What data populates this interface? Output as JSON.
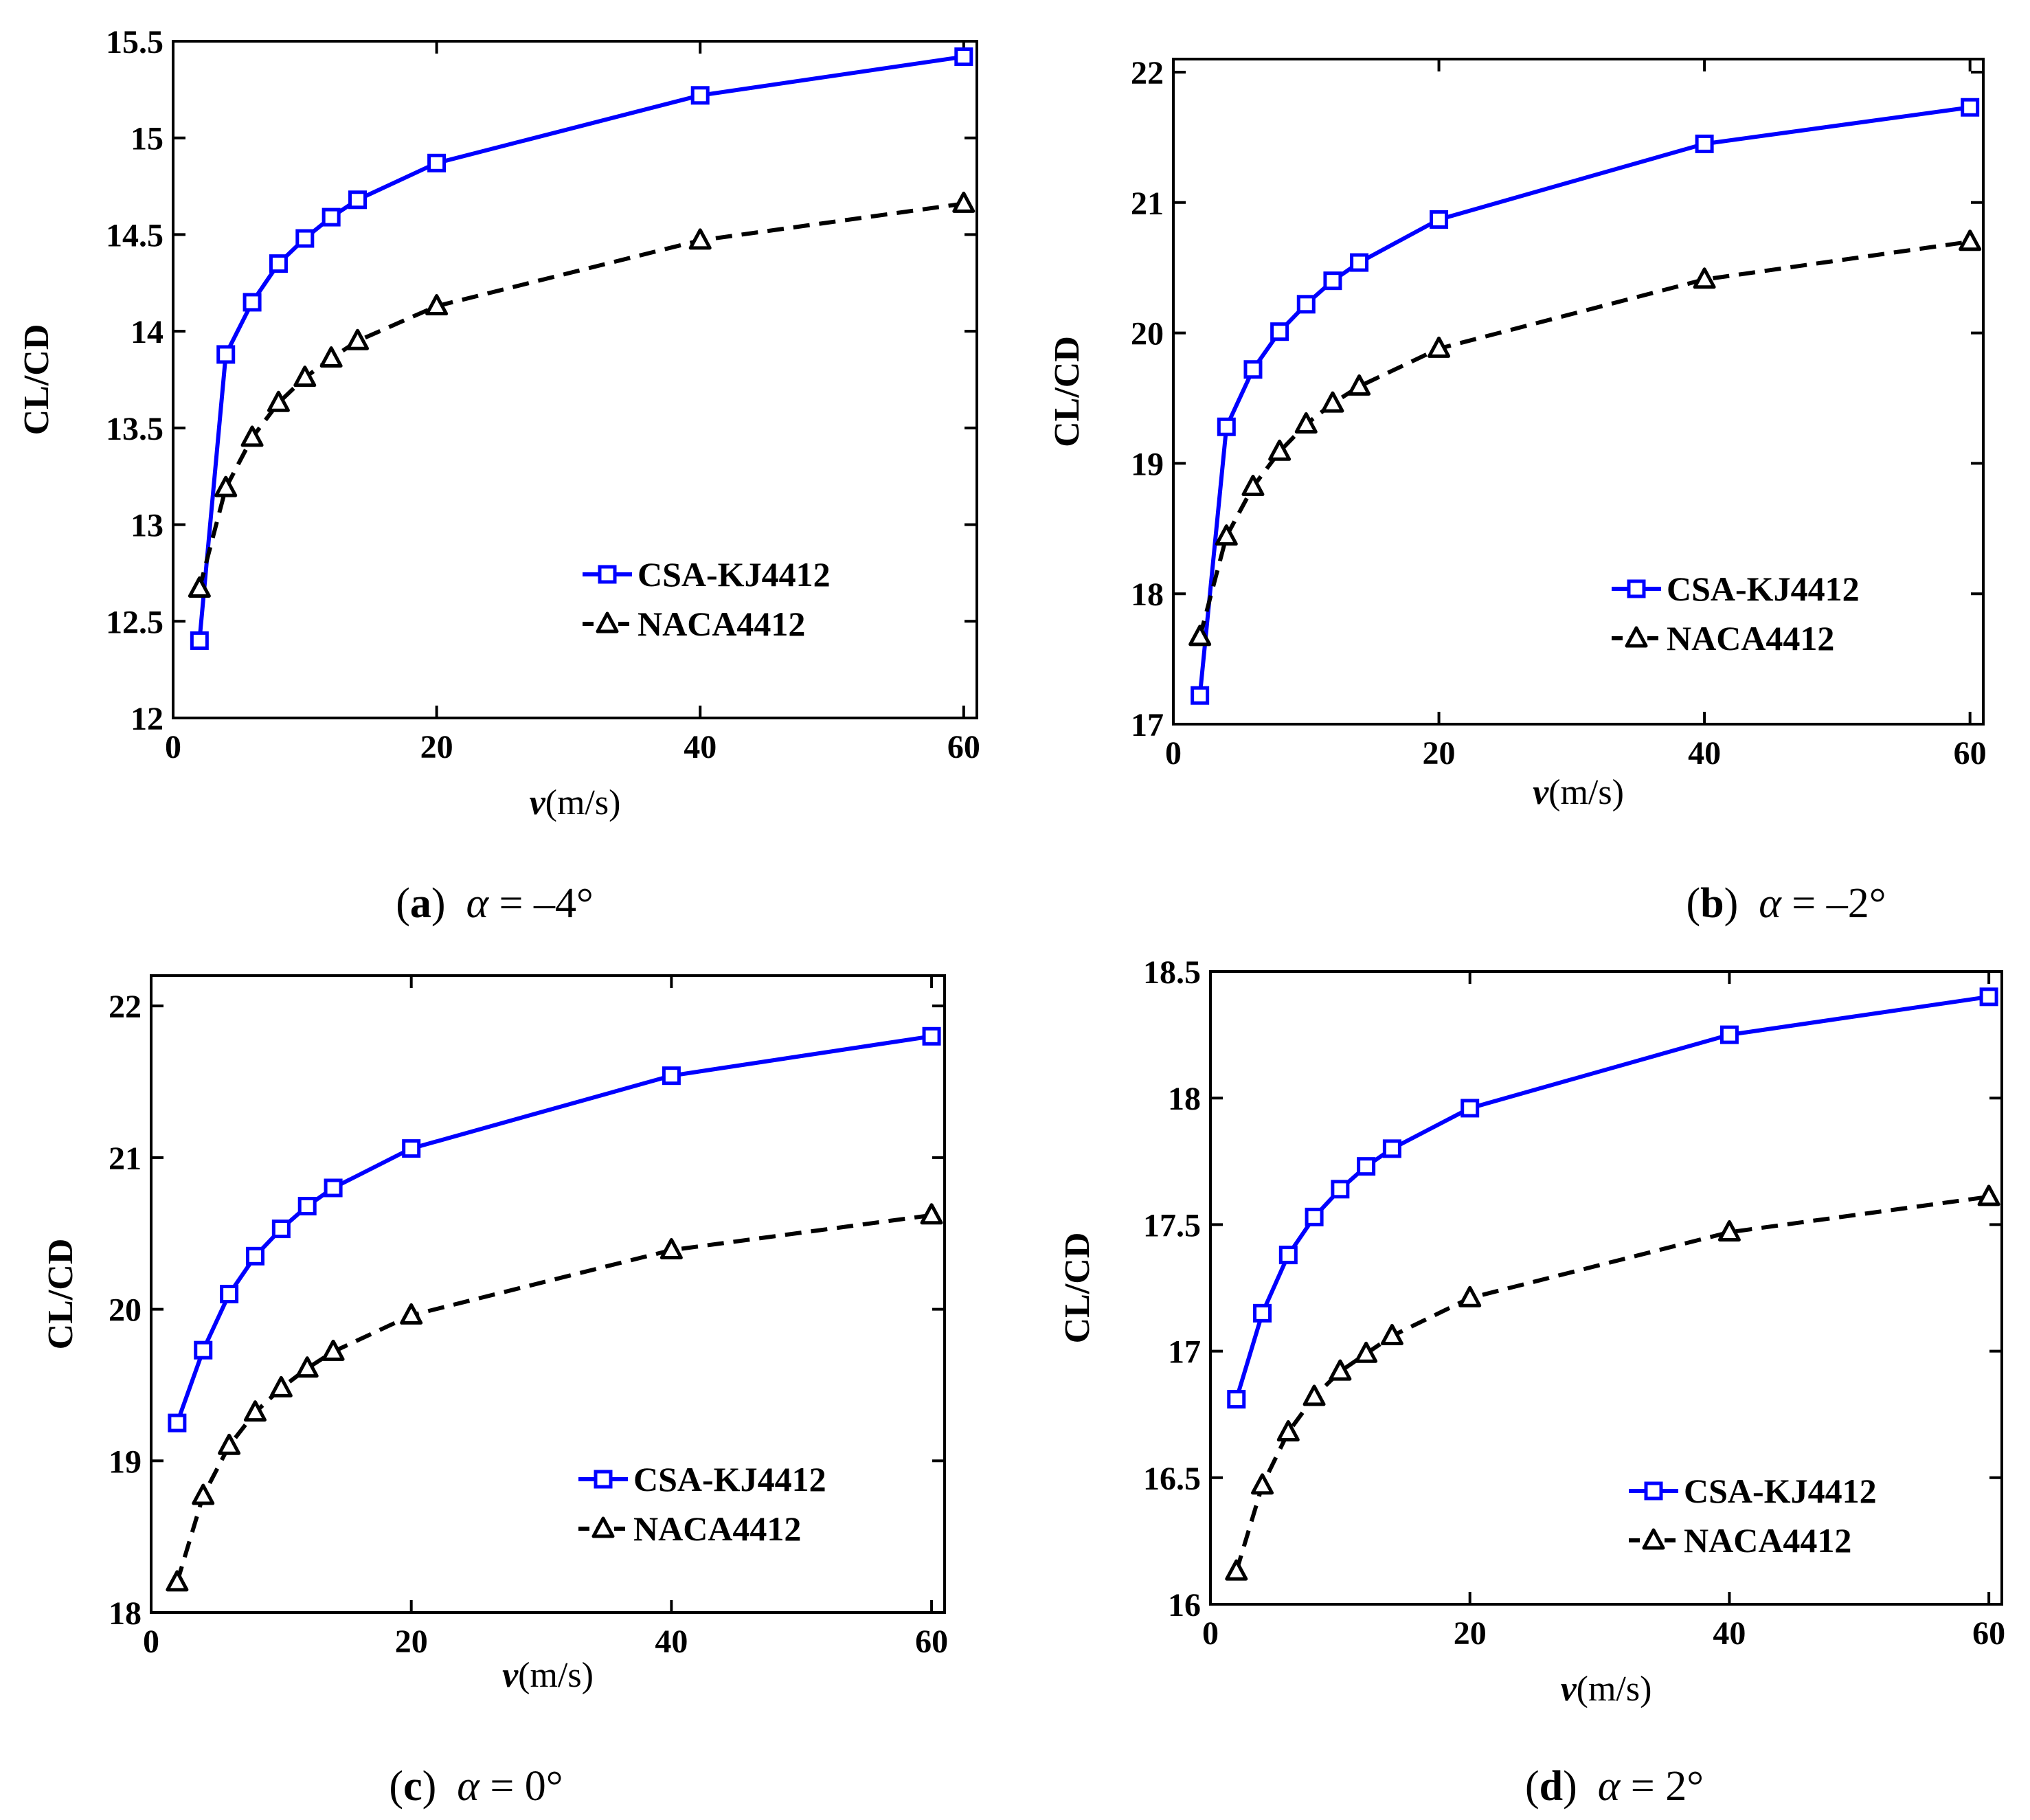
{
  "chart_data": [
    {
      "type": "line",
      "panel": "a",
      "caption": {
        "letter": "a",
        "alpha": "α",
        "rest": " = –4°"
      },
      "xlabel": "v",
      "xlabel_unit": "(m/s)",
      "ylabel": "CL/CD",
      "xlim": [
        0,
        61
      ],
      "ylim": [
        12,
        15.5
      ],
      "xticks": [
        0,
        20,
        40,
        60
      ],
      "xtick_labels": [
        "0",
        "20",
        "40",
        "60"
      ],
      "yticks": [
        12,
        12.5,
        13,
        13.5,
        14,
        14.5,
        15,
        15.5
      ],
      "ytick_labels": [
        "12",
        "12.5",
        "13",
        "13.5",
        "14",
        "14.5",
        "15",
        "15.5"
      ],
      "legend_position": "lower-right",
      "x": [
        2,
        4,
        6,
        8,
        10,
        12,
        14,
        20,
        40,
        60
      ],
      "series": [
        {
          "name": "CSA-KJ4412",
          "color": "#0000ff",
          "style": "solid",
          "marker": "square",
          "values": [
            12.4,
            13.88,
            14.15,
            14.35,
            14.48,
            14.59,
            14.68,
            14.87,
            15.22,
            15.42
          ]
        },
        {
          "name": "NACA4412",
          "color": "#000000",
          "style": "dashed",
          "marker": "triangle",
          "values": [
            12.67,
            13.19,
            13.45,
            13.63,
            13.76,
            13.86,
            13.95,
            14.13,
            14.47,
            14.66
          ]
        }
      ]
    },
    {
      "type": "line",
      "panel": "b",
      "caption": {
        "letter": "b",
        "alpha": "α",
        "rest": " = –2°"
      },
      "xlabel": "v",
      "xlabel_unit": "(m/s)",
      "ylabel": "CL/CD",
      "xlim": [
        0,
        61
      ],
      "ylim": [
        17,
        22.1
      ],
      "xticks": [
        0,
        20,
        40,
        60
      ],
      "xtick_labels": [
        "0",
        "20",
        "40",
        "60"
      ],
      "yticks": [
        17,
        18,
        19,
        20,
        21,
        22
      ],
      "ytick_labels": [
        "17",
        "18",
        "19",
        "20",
        "21",
        "22"
      ],
      "legend_position": "lower-right",
      "x": [
        2,
        4,
        6,
        8,
        10,
        12,
        14,
        20,
        40,
        60
      ],
      "series": [
        {
          "name": "CSA-KJ4412",
          "color": "#0000ff",
          "style": "solid",
          "marker": "square",
          "values": [
            17.22,
            19.28,
            19.72,
            20.01,
            20.22,
            20.4,
            20.54,
            20.87,
            21.45,
            21.73
          ]
        },
        {
          "name": "NACA4412",
          "color": "#000000",
          "style": "dashed",
          "marker": "triangle",
          "values": [
            17.67,
            18.44,
            18.82,
            19.09,
            19.3,
            19.46,
            19.59,
            19.88,
            20.41,
            20.7
          ]
        }
      ]
    },
    {
      "type": "line",
      "panel": "c",
      "caption": {
        "letter": "c",
        "alpha": "α",
        "rest": " = 0°"
      },
      "xlabel": "v",
      "xlabel_unit": "(m/s)",
      "ylabel": "CL/CD",
      "xlim": [
        0,
        61
      ],
      "ylim": [
        18,
        22.2
      ],
      "xticks": [
        0,
        20,
        40,
        60
      ],
      "xtick_labels": [
        "0",
        "20",
        "40",
        "60"
      ],
      "yticks": [
        18,
        19,
        20,
        21,
        22
      ],
      "ytick_labels": [
        "18",
        "19",
        "20",
        "21",
        "22"
      ],
      "legend_position": "lower-right",
      "x": [
        2,
        4,
        6,
        8,
        10,
        12,
        14,
        20,
        40,
        60
      ],
      "series": [
        {
          "name": "CSA-KJ4412",
          "color": "#0000ff",
          "style": "solid",
          "marker": "square",
          "values": [
            19.25,
            19.73,
            20.1,
            20.35,
            20.53,
            20.68,
            20.8,
            21.06,
            21.54,
            21.8
          ]
        },
        {
          "name": "NACA4412",
          "color": "#000000",
          "style": "dashed",
          "marker": "triangle",
          "values": [
            18.2,
            18.77,
            19.1,
            19.32,
            19.48,
            19.61,
            19.72,
            19.96,
            20.39,
            20.62
          ]
        }
      ]
    },
    {
      "type": "line",
      "panel": "d",
      "caption": {
        "letter": "d",
        "alpha": "α",
        "rest": " = 2°"
      },
      "xlabel": "v",
      "xlabel_unit": "(m/s)",
      "ylabel": "CL/CD",
      "xlim": [
        0,
        61
      ],
      "ylim": [
        16,
        18.5
      ],
      "xticks": [
        0,
        20,
        40,
        60
      ],
      "xtick_labels": [
        "0",
        "20",
        "40",
        "60"
      ],
      "yticks": [
        16,
        16.5,
        17,
        17.5,
        18,
        18.5
      ],
      "ytick_labels": [
        "16",
        "16.5",
        "17",
        "17.5",
        "18",
        "18.5"
      ],
      "legend_position": "lower-right",
      "x": [
        2,
        4,
        6,
        8,
        10,
        12,
        14,
        20,
        40,
        60
      ],
      "series": [
        {
          "name": "CSA-KJ4412",
          "color": "#0000ff",
          "style": "solid",
          "marker": "square",
          "values": [
            16.81,
            17.15,
            17.38,
            17.53,
            17.64,
            17.73,
            17.8,
            17.96,
            18.25,
            18.4
          ]
        },
        {
          "name": "NACA4412",
          "color": "#000000",
          "style": "dashed",
          "marker": "triangle",
          "values": [
            16.13,
            16.47,
            16.68,
            16.82,
            16.92,
            16.99,
            17.06,
            17.21,
            17.47,
            17.61
          ]
        }
      ]
    }
  ]
}
